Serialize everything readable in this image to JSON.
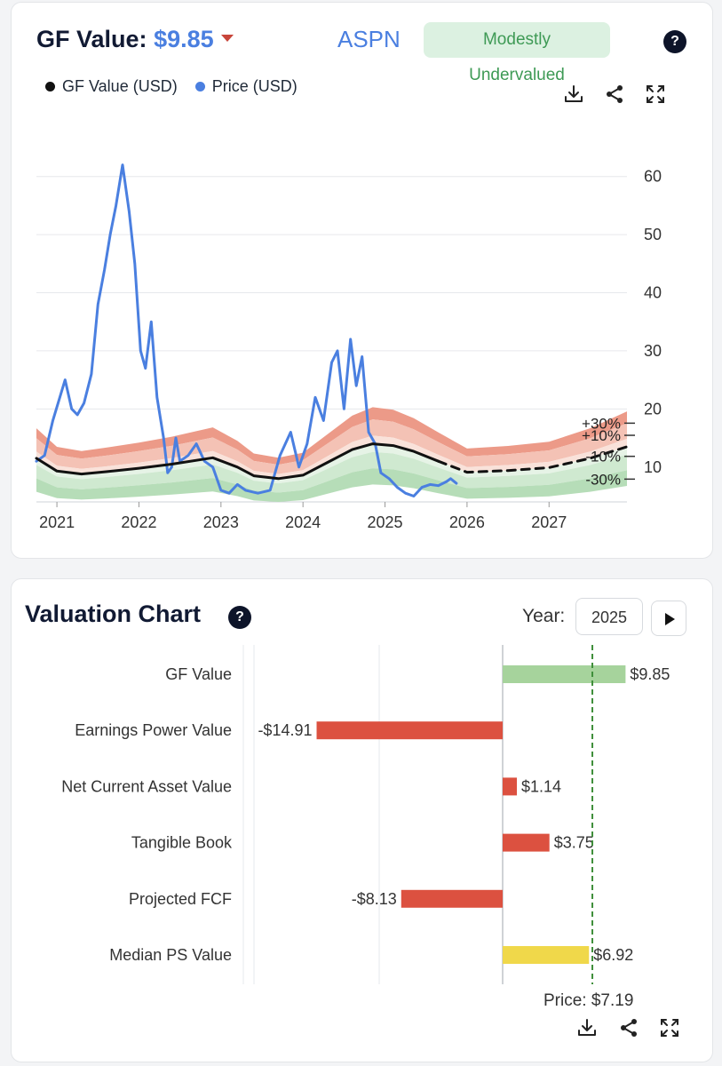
{
  "gf_card": {
    "title_label": "GF Value:",
    "price": "$9.85",
    "ticker": "ASPN",
    "badge": "Modestly Undervalued",
    "help": "?",
    "legend": [
      {
        "label": "GF Value (USD)",
        "color": "#111111"
      },
      {
        "label": "Price (USD)",
        "color": "#4a7fe0"
      }
    ],
    "tools": [
      "download-icon",
      "share-icon",
      "expand-icon"
    ]
  },
  "chart_data": [
    {
      "type": "line",
      "title": "GF Value",
      "x_unit": "year",
      "xlim": [
        2020.75,
        2027.95
      ],
      "ylim": [
        4,
        65
      ],
      "x_ticks": [
        "2021",
        "2022",
        "2023",
        "2024",
        "2025",
        "2026",
        "2027"
      ],
      "y_ticks": [
        "10",
        "20",
        "30",
        "40",
        "50",
        "60"
      ],
      "band_labels": [
        "+30%",
        "+10%",
        "-10%",
        "-30%"
      ],
      "series": [
        {
          "name": "GF Value (USD)",
          "color": "#111111",
          "x": [
            2020.75,
            2021.0,
            2021.3,
            2021.6,
            2022.0,
            2022.4,
            2022.9,
            2023.2,
            2023.4,
            2023.7,
            2024.0,
            2024.3,
            2024.6,
            2024.85,
            2025.1,
            2025.35,
            2025.65
          ],
          "y": [
            11.5,
            9.3,
            8.8,
            9.2,
            9.8,
            10.5,
            11.6,
            10.0,
            8.5,
            8.0,
            8.6,
            10.8,
            13.0,
            14.0,
            13.7,
            12.7,
            11.0
          ]
        },
        {
          "name": "GF Value projected",
          "color": "#111111",
          "dashed": true,
          "x": [
            2025.65,
            2026.0,
            2026.5,
            2027.0,
            2027.5,
            2027.95
          ],
          "y": [
            11.0,
            9.1,
            9.4,
            9.9,
            11.5,
            13.5
          ]
        },
        {
          "name": "Price (USD)",
          "color": "#4a7fe0",
          "x": [
            2020.75,
            2020.85,
            2020.95,
            2021.1,
            2021.18,
            2021.25,
            2021.33,
            2021.42,
            2021.5,
            2021.58,
            2021.65,
            2021.72,
            2021.8,
            2021.88,
            2021.95,
            2022.02,
            2022.08,
            2022.15,
            2022.22,
            2022.3,
            2022.35,
            2022.4,
            2022.45,
            2022.5,
            2022.6,
            2022.7,
            2022.8,
            2022.9,
            2023.0,
            2023.1,
            2023.2,
            2023.3,
            2023.45,
            2023.6,
            2023.72,
            2023.85,
            2023.95,
            2024.05,
            2024.15,
            2024.25,
            2024.35,
            2024.42,
            2024.5,
            2024.58,
            2024.65,
            2024.72,
            2024.8,
            2024.88,
            2024.95,
            2025.05,
            2025.15,
            2025.25,
            2025.35,
            2025.45,
            2025.55,
            2025.65,
            2025.75,
            2025.8,
            2025.87
          ],
          "y": [
            11.0,
            12.0,
            18.0,
            25.0,
            20.0,
            19.0,
            21.0,
            26.0,
            38.0,
            44.0,
            50.0,
            55.0,
            62.0,
            54.0,
            45.0,
            30.0,
            27.0,
            35.0,
            22.0,
            15.0,
            9.0,
            10.0,
            15.0,
            11.0,
            12.0,
            14.0,
            11.0,
            10.0,
            6.0,
            5.5,
            7.0,
            6.0,
            5.5,
            6.0,
            12.0,
            16.0,
            10.0,
            14.0,
            22.0,
            18.0,
            28.0,
            30.0,
            20.0,
            32.0,
            24.0,
            29.0,
            16.0,
            14.0,
            9.0,
            8.0,
            6.5,
            5.5,
            5.0,
            6.5,
            7.0,
            6.8,
            7.5,
            8.0,
            7.19
          ]
        }
      ]
    },
    {
      "type": "bar",
      "title": "Valuation Chart",
      "orientation": "horizontal",
      "xlim": [
        -20,
        11.5
      ],
      "categories": [
        "GF Value",
        "Earnings Power Value",
        "Net Current Asset Value",
        "Tangible Book",
        "Projected FCF",
        "Median PS Value"
      ],
      "values": [
        9.85,
        -14.91,
        1.14,
        3.75,
        -8.13,
        6.92
      ],
      "value_labels": [
        "$9.85",
        "-$14.91",
        "$1.14",
        "$3.75",
        "-$8.13",
        "$6.92"
      ],
      "colors": [
        "#a6d39c",
        "#dc5140",
        "#dc5140",
        "#dc5140",
        "#dc5140",
        "#f0d84a"
      ],
      "reference_line": {
        "label": "Price",
        "value": 7.19
      }
    }
  ],
  "valuation_card": {
    "title": "Valuation Chart",
    "help": "?",
    "year_label": "Year:",
    "year_value": "2025",
    "price_text": "Price: $7.19",
    "tools": [
      "download-icon",
      "share-icon",
      "expand-icon"
    ]
  }
}
